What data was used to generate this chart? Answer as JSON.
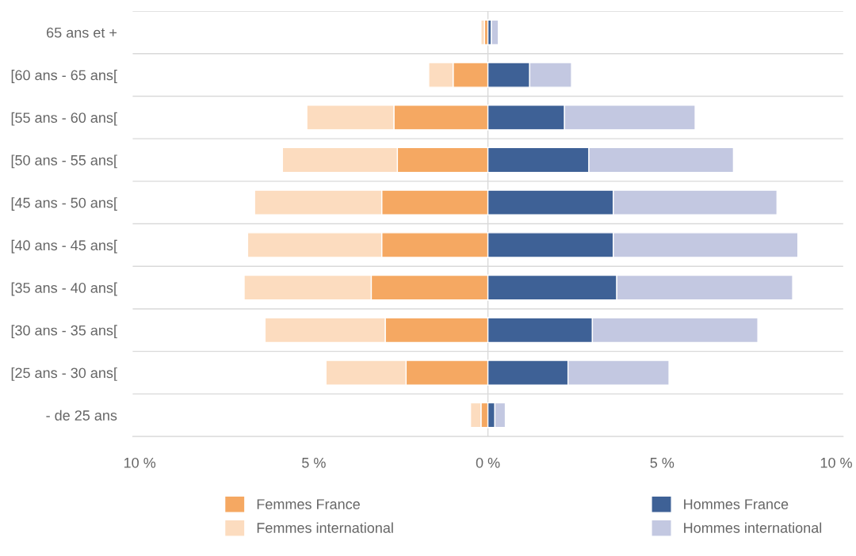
{
  "chart_data": {
    "type": "bar",
    "orientation": "horizontal",
    "stacked": true,
    "categories": [
      "65 ans et +",
      "[60 ans - 65 ans[",
      "[55 ans - 60 ans[",
      "[50 ans - 55 ans[",
      "[45 ans - 50 ans[",
      "[40 ans - 45 ans[",
      "[35 ans - 40 ans[",
      "[30 ans - 35 ans[",
      "[25 ans - 30 ans[",
      "- de 25 ans"
    ],
    "series": [
      {
        "name": "Femmes France",
        "color": "#f5a862",
        "values": [
          -0.1,
          -1.0,
          -2.7,
          -2.6,
          -3.05,
          -3.05,
          -3.35,
          -2.95,
          -2.35,
          -0.2
        ]
      },
      {
        "name": "Femmes international",
        "color": "#fcdcbf",
        "values": [
          -0.1,
          -0.7,
          -2.5,
          -3.3,
          -3.65,
          -3.85,
          -3.65,
          -3.45,
          -2.3,
          -0.3
        ]
      },
      {
        "name": "Hommes France",
        "color": "#3e6196",
        "values": [
          0.1,
          1.2,
          2.2,
          2.9,
          3.6,
          3.6,
          3.7,
          3.0,
          2.3,
          0.2
        ]
      },
      {
        "name": "Hommes international",
        "color": "#c3c8e1",
        "values": [
          0.2,
          1.2,
          3.75,
          4.15,
          4.7,
          5.3,
          5.05,
          4.75,
          2.9,
          0.3
        ]
      }
    ],
    "xlim": [
      -10.2,
      10.2
    ],
    "xticks": [
      {
        "value": -10,
        "label": "10 %"
      },
      {
        "value": -5,
        "label": "5 %"
      },
      {
        "value": 0,
        "label": "0 %"
      },
      {
        "value": 5,
        "label": "5 %"
      },
      {
        "value": 10,
        "label": "10 %"
      }
    ],
    "ref_lines": [
      {
        "axis": "x",
        "value": 0,
        "color": "#d9d9d9"
      }
    ],
    "grid": "y",
    "legend": "bottom"
  }
}
